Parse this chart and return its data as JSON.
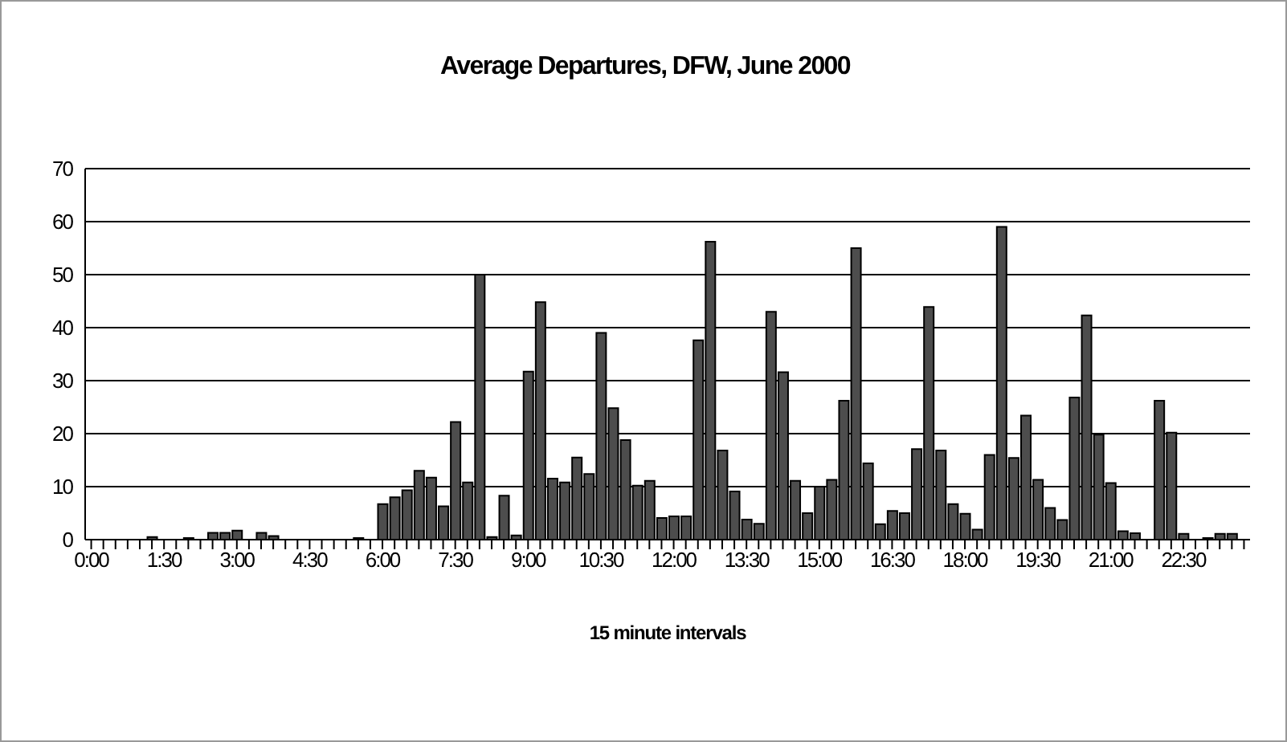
{
  "chart_data": {
    "type": "bar",
    "title": "Average Departures, DFW, June 2000",
    "xlabel": "15 minute intervals",
    "categories": [
      "0:00",
      null,
      null,
      null,
      null,
      null,
      "1:30",
      null,
      null,
      null,
      null,
      null,
      "3:00",
      null,
      null,
      null,
      null,
      null,
      "4:30",
      null,
      null,
      null,
      null,
      null,
      "6:00",
      null,
      null,
      null,
      null,
      null,
      "7:30",
      null,
      null,
      null,
      null,
      null,
      "9:00",
      null,
      null,
      null,
      null,
      null,
      "10:30",
      null,
      null,
      null,
      null,
      null,
      "12:00",
      null,
      null,
      null,
      null,
      null,
      "13:30",
      null,
      null,
      null,
      null,
      null,
      "15:00",
      null,
      null,
      null,
      null,
      null,
      "16:30",
      null,
      null,
      null,
      null,
      null,
      "18:00",
      null,
      null,
      null,
      null,
      null,
      "19:30",
      null,
      null,
      null,
      null,
      null,
      "21:00",
      null,
      null,
      null,
      null,
      null,
      "22:30",
      null,
      null,
      null,
      null,
      null
    ],
    "values": [
      0,
      0,
      0,
      0,
      0,
      0.5,
      0,
      0,
      0.3,
      0,
      1.3,
      1.3,
      1.7,
      0,
      1.3,
      0.7,
      0,
      0,
      0,
      0,
      0,
      0,
      0.3,
      0,
      6.7,
      8,
      9.3,
      13,
      11.7,
      6.3,
      22.2,
      10.8,
      50,
      0.5,
      8.3,
      0.8,
      31.7,
      44.8,
      11.5,
      10.8,
      15.5,
      12.4,
      39,
      24.8,
      18.8,
      10.2,
      11.1,
      4.1,
      4.4,
      4.4,
      37.6,
      56.2,
      16.8,
      9.1,
      3.8,
      3,
      43,
      31.6,
      11.1,
      5,
      10,
      11.3,
      26.2,
      55,
      14.4,
      2.9,
      5.4,
      5,
      17.1,
      43.9,
      16.8,
      6.7,
      4.9,
      1.9,
      16,
      59,
      15.4,
      23.4,
      11.3,
      6,
      3.7,
      26.8,
      42.3,
      19.8,
      10.7,
      1.6,
      1.2,
      0,
      26.2,
      20.2,
      1.1,
      0,
      0.3,
      1.1,
      1.1,
      0
    ],
    "color": "#4d4d4d",
    "ylim": [
      0,
      70
    ],
    "yticks": [
      0,
      10,
      20,
      30,
      40,
      50,
      60,
      70
    ],
    "grid": "y"
  }
}
